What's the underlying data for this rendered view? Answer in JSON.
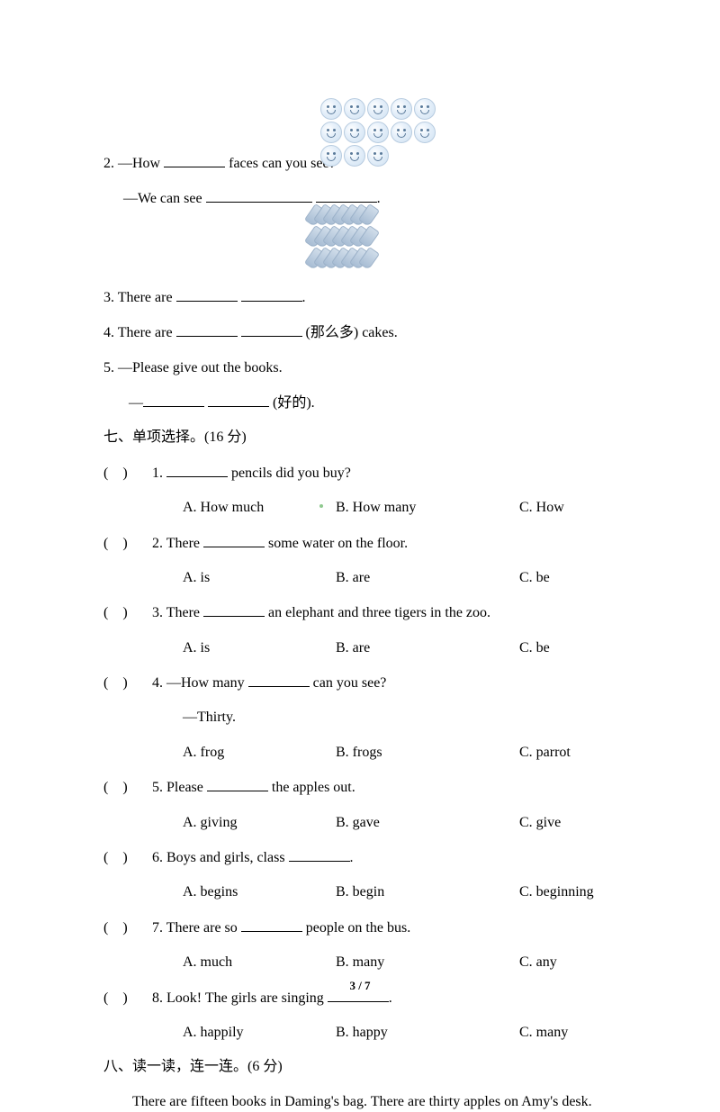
{
  "q2": {
    "text1": "2. —How ",
    "text2": " faces can you see?",
    "ans1": "—We can see ",
    "period": "."
  },
  "q3": {
    "text1": "3. There are ",
    "period": "."
  },
  "q4": {
    "text1": "4. There are ",
    "text2": " (那么多) cakes."
  },
  "q5": {
    "text1": "5. —Please give out the books.",
    "ans1": "—",
    "ans2": " (好的)."
  },
  "section7": {
    "title": "七、单项选择。(16 分)"
  },
  "mc": [
    {
      "num": "1. ",
      "text": " pencils did you buy?",
      "a": "A. How much",
      "b": "B. How many",
      "c": "C. How"
    },
    {
      "num": "2. There ",
      "text": " some water on the floor.",
      "a": "A. is",
      "b": "B. are",
      "c": "C. be"
    },
    {
      "num": "3. There ",
      "text": " an elephant and three tigers in the zoo.",
      "a": "A. is",
      "b": "B. are",
      "c": "C. be"
    },
    {
      "num": "4. —How many ",
      "text": " can you see?",
      "thirty": "—Thirty.",
      "a": "A. frog",
      "b": "B. frogs",
      "c": "C. parrot"
    },
    {
      "num": "5. Please ",
      "text": " the apples out.",
      "a": "A. giving",
      "b": "B. gave",
      "c": "C. give"
    },
    {
      "num": "6. Boys and girls, class ",
      "text": ".",
      "a": "A. begins",
      "b": "B. begin",
      "c": "C. beginning"
    },
    {
      "num": "7. There are so ",
      "text": " people on the bus.",
      "a": "A. much",
      "b": "B. many",
      "c": "C. any"
    },
    {
      "num": "8. Look! The girls are singing ",
      "text": ".",
      "a": "A. happily",
      "b": "B. happy",
      "c": "C. many"
    }
  ],
  "section8": {
    "title": "八、读一读，连一连。(6 分)",
    "para": "There are fifteen books in Daming's bag. There are thirty apples on Amy's desk."
  },
  "paren": "(",
  "paren_close": ")",
  "page": "3 / 7",
  "smiley_rows": [
    5,
    5,
    3
  ],
  "pen_rows": [
    7,
    7,
    7
  ]
}
